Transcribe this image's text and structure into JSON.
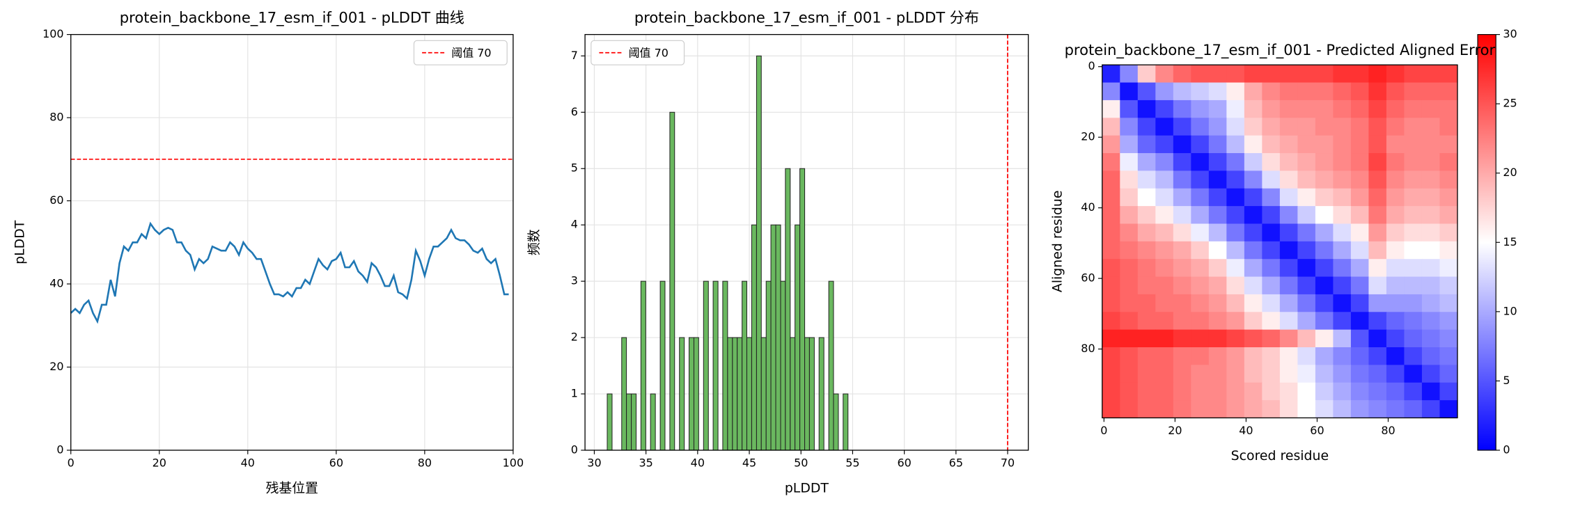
{
  "chart_data": [
    {
      "type": "line",
      "title": "protein_backbone_17_esm_if_001 - pLDDT 曲线",
      "xlabel": "残基位置",
      "ylabel": "pLDDT",
      "x": [
        0,
        1,
        2,
        3,
        4,
        5,
        6,
        7,
        8,
        9,
        10,
        11,
        12,
        13,
        14,
        15,
        16,
        17,
        18,
        19,
        20,
        21,
        22,
        23,
        24,
        25,
        26,
        27,
        28,
        29,
        30,
        31,
        32,
        33,
        34,
        35,
        36,
        37,
        38,
        39,
        40,
        41,
        42,
        43,
        44,
        45,
        46,
        47,
        48,
        49,
        50,
        51,
        52,
        53,
        54,
        55,
        56,
        57,
        58,
        59,
        60,
        61,
        62,
        63,
        64,
        65,
        66,
        67,
        68,
        69,
        70,
        71,
        72,
        73,
        74,
        75,
        76,
        77,
        78,
        79,
        80,
        81,
        82,
        83,
        84,
        85,
        86,
        87,
        88,
        89,
        90,
        91,
        92,
        93,
        94,
        95,
        96,
        97,
        98,
        99
      ],
      "values": [
        33,
        34,
        33,
        35,
        36,
        33,
        31,
        35,
        35,
        41,
        37,
        45,
        49,
        48,
        50,
        50,
        52,
        51,
        54.5,
        53,
        52,
        53,
        53.5,
        53,
        50,
        50,
        48,
        47,
        43.5,
        46,
        45,
        46,
        49,
        48.5,
        48,
        48,
        50,
        49,
        47,
        50,
        48.5,
        47.5,
        46,
        46,
        43,
        40,
        37.5,
        37.5,
        37,
        38,
        37,
        39,
        39,
        41,
        40,
        43,
        46,
        44.5,
        43.5,
        45.5,
        46,
        47.5,
        44,
        44,
        45.5,
        43,
        42,
        40.5,
        45,
        44,
        42,
        39.5,
        39.5,
        42,
        38,
        37.5,
        36.5,
        41,
        48,
        45.5,
        42,
        46,
        49,
        49,
        50,
        51,
        53,
        51,
        50.5,
        50.5,
        49.5,
        48,
        47.5,
        48.5,
        46,
        45,
        46,
        42,
        37.5,
        37.5
      ],
      "color": "#1f77b4",
      "xlim": [
        0,
        100
      ],
      "ylim": [
        0,
        100
      ],
      "xticks": [
        0,
        20,
        40,
        60,
        80,
        100
      ],
      "yticks": [
        0,
        20,
        40,
        60,
        80,
        100
      ],
      "grid": true,
      "hline": {
        "name": "阈值 70",
        "value": 70,
        "color": "#ff0000"
      },
      "legend": "upper right"
    },
    {
      "type": "histogram",
      "title": "protein_backbone_17_esm_if_001 - pLDDT 分布",
      "xlabel": "pLDDT",
      "ylabel": "频数",
      "bins": [
        31.25,
        31.72,
        32.18,
        32.65,
        33.11,
        33.58,
        34.05,
        34.51,
        34.98,
        35.44,
        35.91,
        36.38,
        36.84,
        37.31,
        37.77,
        38.24,
        38.71,
        39.17,
        39.64,
        40.1,
        40.57,
        41.04,
        41.5,
        41.97,
        42.43,
        42.9,
        43.37,
        43.83,
        44.3,
        44.76,
        45.23,
        45.7,
        46.16,
        46.63,
        47.09,
        47.56,
        48.03,
        48.49,
        48.96,
        49.42,
        49.89,
        50.36,
        50.82,
        51.29,
        51.75,
        52.22,
        52.69,
        53.15,
        53.62,
        54.08,
        54.55
      ],
      "values": [
        1,
        0,
        0,
        2,
        1,
        1,
        0,
        3,
        0,
        1,
        0,
        3,
        0,
        6,
        0,
        2,
        0,
        2,
        2,
        0,
        3,
        0,
        3,
        0,
        3,
        2,
        2,
        2,
        3,
        2,
        4,
        7,
        2,
        3,
        4,
        4,
        3,
        5,
        2,
        4,
        5,
        2,
        2,
        0,
        2,
        0,
        3,
        1,
        0,
        1
      ],
      "color": "#6ab85f",
      "xlim": [
        29.1,
        72.0
      ],
      "ylim": [
        0,
        7.38
      ],
      "xticks": [
        30,
        35,
        40,
        45,
        50,
        55,
        60,
        65,
        70
      ],
      "yticks": [
        0,
        1,
        2,
        3,
        4,
        5,
        6,
        7
      ],
      "grid": true,
      "vline": {
        "name": "阈值 70",
        "value": 70,
        "color": "#ff0000"
      },
      "legend": "upper left"
    },
    {
      "type": "heatmap",
      "title": "protein_backbone_17_esm_if_001 - Predicted Aligned Error",
      "xlabel": "Scored residue",
      "ylabel": "Aligned residue",
      "xlim": [
        -0.5,
        99.5
      ],
      "ylim": [
        99.5,
        -0.5
      ],
      "xticks": [
        0,
        20,
        40,
        60,
        80
      ],
      "yticks": [
        0,
        20,
        40,
        60,
        80
      ],
      "clim": [
        0,
        30
      ],
      "cticks": [
        0,
        5,
        10,
        15,
        20,
        25,
        30
      ],
      "colormap": "bwr",
      "values": [
        [
          2,
          8,
          18,
          22,
          24,
          25,
          25,
          25,
          26,
          26,
          26,
          26,
          26,
          27,
          27,
          28,
          27,
          26,
          26,
          26
        ],
        [
          8,
          1,
          5,
          9,
          11,
          12,
          13,
          16,
          20,
          22,
          23,
          23,
          23,
          24,
          25,
          27,
          25,
          24,
          24,
          24
        ],
        [
          16,
          5,
          1,
          4,
          7,
          9,
          10,
          14,
          19,
          21,
          22,
          22,
          22,
          23,
          24,
          26,
          24,
          23,
          23,
          23
        ],
        [
          19,
          8,
          4,
          1,
          4,
          7,
          9,
          13,
          18,
          20,
          21,
          21,
          22,
          22,
          23,
          25,
          23,
          22,
          22,
          23
        ],
        [
          21,
          10,
          6,
          4,
          1,
          4,
          7,
          11,
          16,
          19,
          20,
          21,
          21,
          22,
          23,
          25,
          22,
          22,
          22,
          22
        ],
        [
          23,
          14,
          10,
          8,
          4,
          1,
          4,
          7,
          12,
          17,
          19,
          20,
          21,
          22,
          23,
          26,
          23,
          22,
          22,
          23
        ],
        [
          24,
          17,
          13,
          11,
          7,
          4,
          1,
          4,
          8,
          13,
          17,
          19,
          20,
          21,
          22,
          25,
          22,
          21,
          21,
          22
        ],
        [
          24,
          18,
          15,
          13,
          10,
          7,
          4,
          1,
          4,
          8,
          13,
          16,
          18,
          19,
          21,
          24,
          21,
          20,
          20,
          21
        ],
        [
          24,
          20,
          18,
          16,
          13,
          10,
          7,
          4,
          1,
          4,
          8,
          12,
          15,
          17,
          19,
          23,
          20,
          19,
          19,
          20
        ],
        [
          24,
          22,
          20,
          19,
          17,
          14,
          11,
          7,
          4,
          1,
          4,
          7,
          10,
          13,
          16,
          21,
          18,
          17,
          17,
          18
        ],
        [
          24,
          23,
          22,
          21,
          20,
          18,
          15,
          11,
          7,
          4,
          1,
          4,
          7,
          10,
          13,
          19,
          16,
          15,
          15,
          16
        ],
        [
          25,
          24,
          23,
          22,
          21,
          20,
          18,
          14,
          10,
          7,
          4,
          1,
          4,
          7,
          10,
          16,
          13,
          13,
          13,
          14
        ],
        [
          25,
          24,
          23,
          23,
          22,
          21,
          20,
          17,
          13,
          10,
          7,
          4,
          1,
          4,
          7,
          13,
          11,
          11,
          11,
          12
        ],
        [
          25,
          24,
          24,
          23,
          23,
          22,
          21,
          19,
          16,
          13,
          10,
          7,
          4,
          1,
          4,
          9,
          9,
          9,
          10,
          11
        ],
        [
          26,
          25,
          24,
          24,
          23,
          23,
          22,
          21,
          18,
          16,
          13,
          10,
          7,
          4,
          1,
          4,
          6,
          7,
          8,
          9
        ],
        [
          28,
          28,
          28,
          28,
          27,
          27,
          27,
          26,
          25,
          24,
          22,
          19,
          16,
          11,
          5,
          1,
          4,
          6,
          7,
          8
        ],
        [
          26,
          25,
          24,
          24,
          23,
          23,
          22,
          21,
          19,
          18,
          16,
          13,
          10,
          8,
          6,
          4,
          1,
          4,
          6,
          7
        ],
        [
          26,
          25,
          24,
          24,
          23,
          22,
          22,
          21,
          19,
          18,
          16,
          14,
          11,
          9,
          7,
          6,
          4,
          1,
          4,
          6
        ],
        [
          26,
          25,
          24,
          24,
          23,
          22,
          22,
          21,
          20,
          18,
          17,
          15,
          12,
          10,
          8,
          7,
          6,
          4,
          1,
          4
        ],
        [
          26,
          25,
          24,
          24,
          23,
          22,
          22,
          21,
          20,
          19,
          17,
          15,
          13,
          11,
          9,
          8,
          7,
          6,
          4,
          1
        ]
      ]
    }
  ]
}
